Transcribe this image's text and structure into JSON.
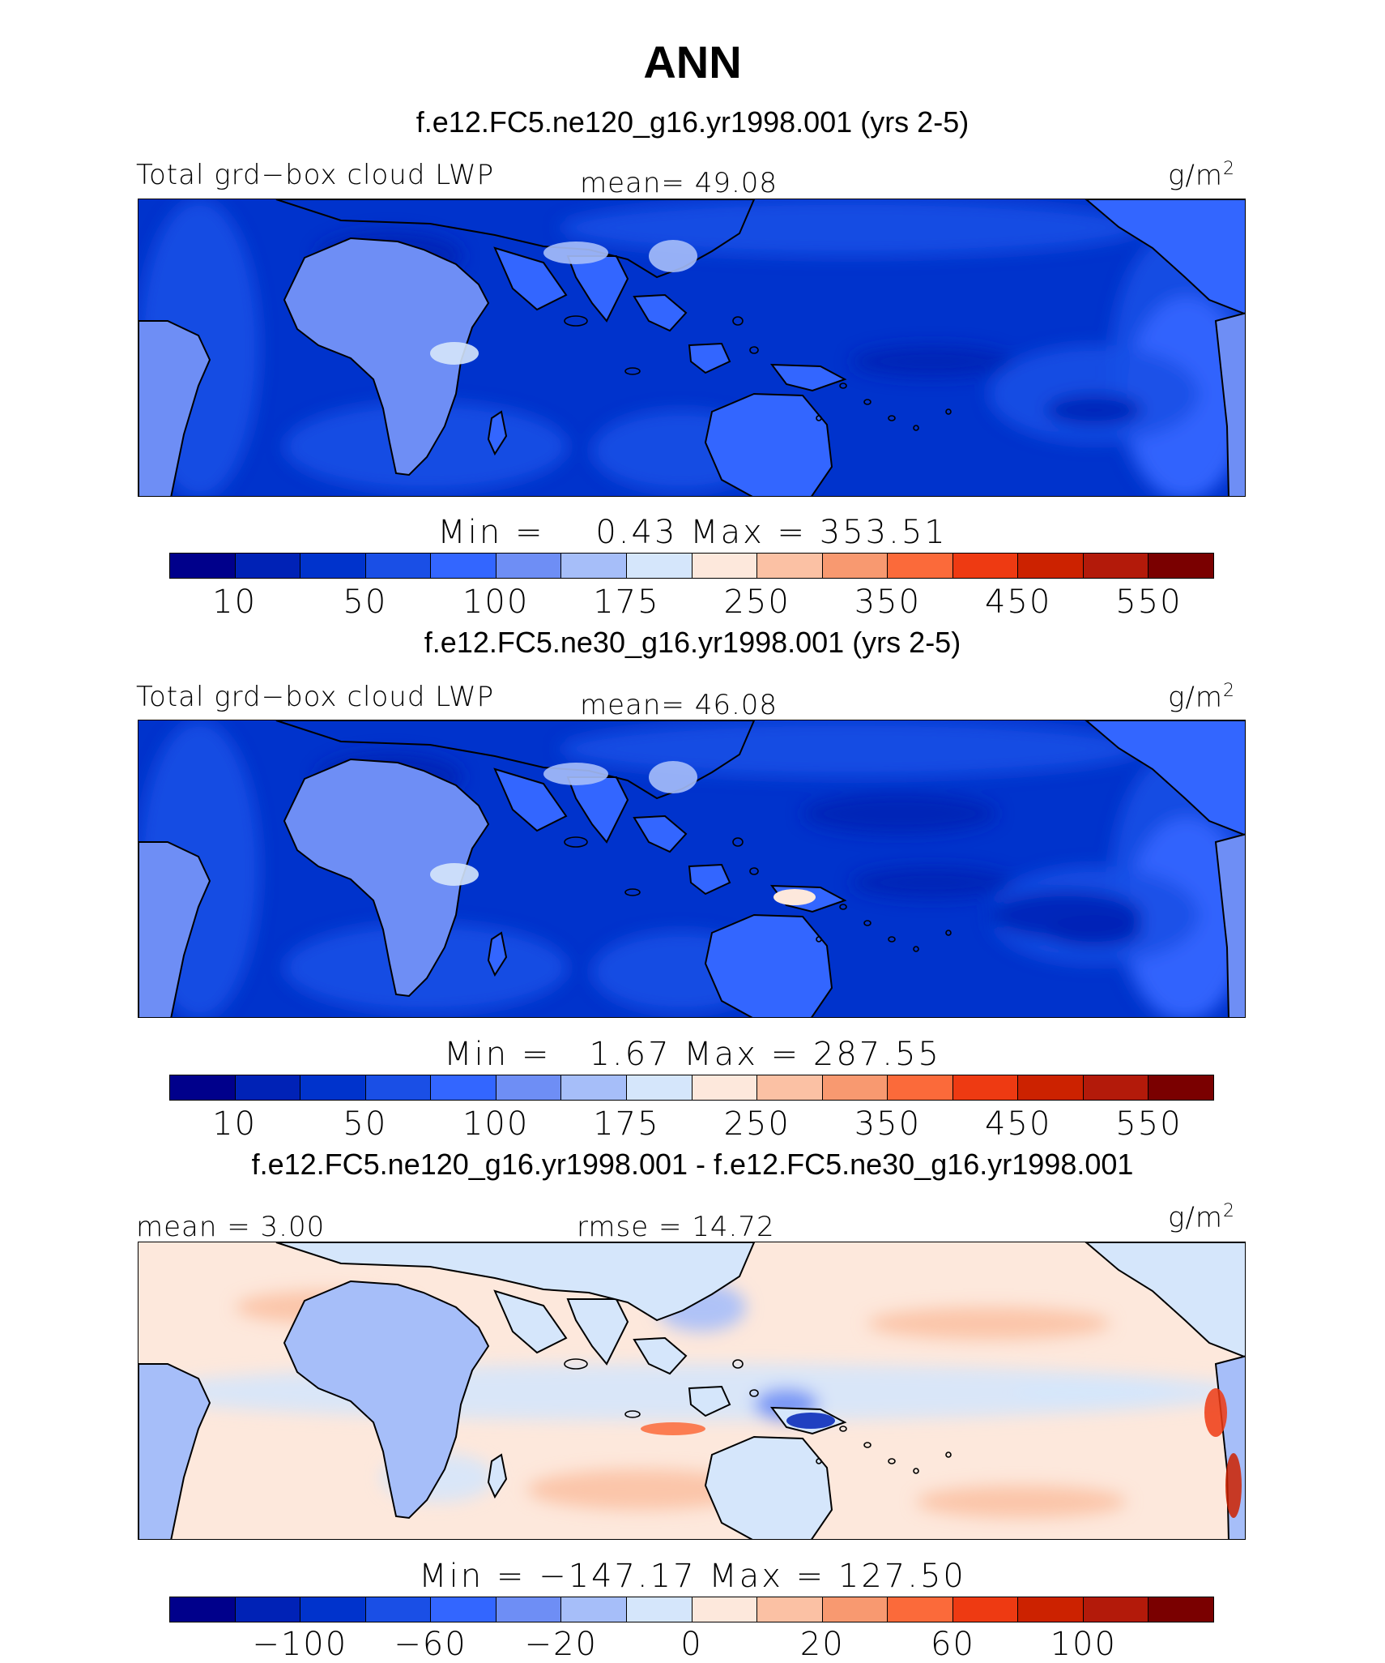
{
  "title": "ANN",
  "panels": [
    {
      "case_title": "f.e12.FC5.ne120_g16.yr1998.001 (yrs 2-5)",
      "left_label": "Total grd−box cloud LWP",
      "center_label": "mean=  49.08",
      "units_base": "g/m",
      "units_exp": "2",
      "minmax": "Min =    0.43 Max = 353.51",
      "colorbar_colors": [
        "#00008b",
        "#0022b6",
        "#0033cc",
        "#1a4fe6",
        "#3366ff",
        "#6e8ef5",
        "#a6bef9",
        "#d5e6fb",
        "#fde8dc",
        "#fbc1a4",
        "#f89970",
        "#fb6a3a",
        "#ee3a12",
        "#cc2200",
        "#b31a0a",
        "#7a0000"
      ],
      "colorbar_ticks": [
        "10",
        "50",
        "100",
        "175",
        "250",
        "350",
        "450",
        "550"
      ],
      "palette_kind": "abs_high"
    },
    {
      "case_title": "f.e12.FC5.ne30_g16.yr1998.001 (yrs 2-5)",
      "left_label": "Total grd−box cloud LWP",
      "center_label": "mean=  46.08",
      "units_base": "g/m",
      "units_exp": "2",
      "minmax": "Min =   1.67 Max = 287.55",
      "colorbar_colors": [
        "#00008b",
        "#0022b6",
        "#0033cc",
        "#1a4fe6",
        "#3366ff",
        "#6e8ef5",
        "#a6bef9",
        "#d5e6fb",
        "#fde8dc",
        "#fbc1a4",
        "#f89970",
        "#fb6a3a",
        "#ee3a12",
        "#cc2200",
        "#b31a0a",
        "#7a0000"
      ],
      "colorbar_ticks": [
        "10",
        "50",
        "100",
        "175",
        "250",
        "350",
        "450",
        "550"
      ],
      "palette_kind": "abs_low"
    },
    {
      "case_title": "f.e12.FC5.ne120_g16.yr1998.001 - f.e12.FC5.ne30_g16.yr1998.001",
      "left_label": "mean =   3.00",
      "center_label": "rmse =  14.72",
      "units_base": "g/m",
      "units_exp": "2",
      "minmax": "Min = −147.17 Max = 127.50",
      "colorbar_colors": [
        "#00008b",
        "#0022b6",
        "#0033cc",
        "#1a4fe6",
        "#3366ff",
        "#6e8ef5",
        "#a6bef9",
        "#d5e6fb",
        "#fde8dc",
        "#fbc1a4",
        "#f89970",
        "#fb6a3a",
        "#ee3a12",
        "#cc2200",
        "#b31a0a",
        "#7a0000"
      ],
      "colorbar_ticks": [
        "−100",
        "−60",
        "−20",
        "0",
        "20",
        "60",
        "100"
      ],
      "palette_kind": "diff"
    }
  ],
  "chart_data": [
    {
      "type": "heatmap",
      "title": "f.e12.FC5.ne120_g16.yr1998.001 (yrs 2-5)",
      "variable": "Total grd−box cloud LWP",
      "units": "g/m2",
      "mean": 49.08,
      "min": 0.43,
      "max": 353.51,
      "contour_levels": [
        10,
        50,
        100,
        175,
        250,
        350,
        450,
        550
      ],
      "colorbar_tick_labels": [
        "10",
        "50",
        "100",
        "175",
        "250",
        "350",
        "450",
        "550"
      ]
    },
    {
      "type": "heatmap",
      "title": "f.e12.FC5.ne30_g16.yr1998.001 (yrs 2-5)",
      "variable": "Total grd−box cloud LWP",
      "units": "g/m2",
      "mean": 46.08,
      "min": 1.67,
      "max": 287.55,
      "contour_levels": [
        10,
        50,
        100,
        175,
        250,
        350,
        450,
        550
      ],
      "colorbar_tick_labels": [
        "10",
        "50",
        "100",
        "175",
        "250",
        "350",
        "450",
        "550"
      ]
    },
    {
      "type": "heatmap",
      "title": "f.e12.FC5.ne120_g16.yr1998.001 - f.e12.FC5.ne30_g16.yr1998.001",
      "units": "g/m2",
      "mean": 3.0,
      "rmse": 14.72,
      "min": -147.17,
      "max": 127.5,
      "contour_levels": [
        -100,
        -60,
        -20,
        0,
        20,
        60,
        100
      ],
      "colorbar_tick_labels": [
        "−100",
        "−60",
        "−20",
        "0",
        "20",
        "60",
        "100"
      ]
    }
  ]
}
